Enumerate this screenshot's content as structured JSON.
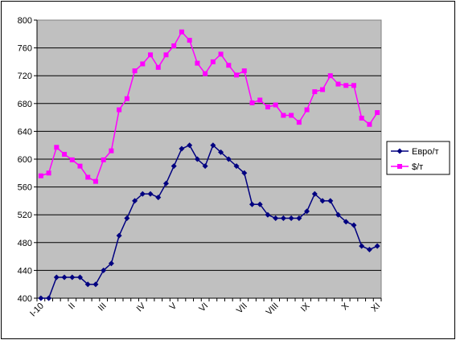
{
  "chart_data": {
    "type": "line",
    "title": "",
    "xlabel": "",
    "ylabel": "",
    "ylim": [
      400,
      800
    ],
    "yticks": [
      400,
      440,
      480,
      520,
      560,
      600,
      640,
      680,
      720,
      760,
      800
    ],
    "grid": true,
    "legend_position": "right",
    "plot_background": "#c0c0c0",
    "x_tick_labels": [
      {
        "index": 0,
        "label": "I-10"
      },
      {
        "index": 4,
        "label": "II"
      },
      {
        "index": 8,
        "label": "III"
      },
      {
        "index": 13,
        "label": "IV"
      },
      {
        "index": 17,
        "label": "V"
      },
      {
        "index": 21,
        "label": "VI"
      },
      {
        "index": 26,
        "label": "VII"
      },
      {
        "index": 30,
        "label": "VIII"
      },
      {
        "index": 34,
        "label": "IX"
      },
      {
        "index": 39,
        "label": "X"
      },
      {
        "index": 43,
        "label": "XI"
      }
    ],
    "series": [
      {
        "name": "Евро/т",
        "color": "#000080",
        "marker": "diamond",
        "values": [
          400,
          400,
          430,
          430,
          430,
          430,
          420,
          420,
          440,
          450,
          490,
          515,
          540,
          550,
          550,
          545,
          565,
          590,
          615,
          620,
          600,
          590,
          620,
          610,
          600,
          590,
          580,
          535,
          535,
          520,
          515,
          515,
          515,
          515,
          525,
          550,
          540,
          540,
          520,
          510,
          505,
          475,
          470,
          475
        ]
      },
      {
        "name": "$/т",
        "color": "#ff00ff",
        "marker": "square",
        "values": [
          576,
          580,
          617,
          607,
          599,
          590,
          574,
          568,
          599,
          612,
          671,
          687,
          727,
          737,
          750,
          732,
          750,
          763,
          783,
          771,
          738,
          723,
          740,
          751,
          735,
          721,
          727,
          681,
          685,
          675,
          678,
          663,
          663,
          653,
          671,
          697,
          700,
          720,
          708,
          706,
          706,
          659,
          650,
          667
        ]
      }
    ]
  }
}
